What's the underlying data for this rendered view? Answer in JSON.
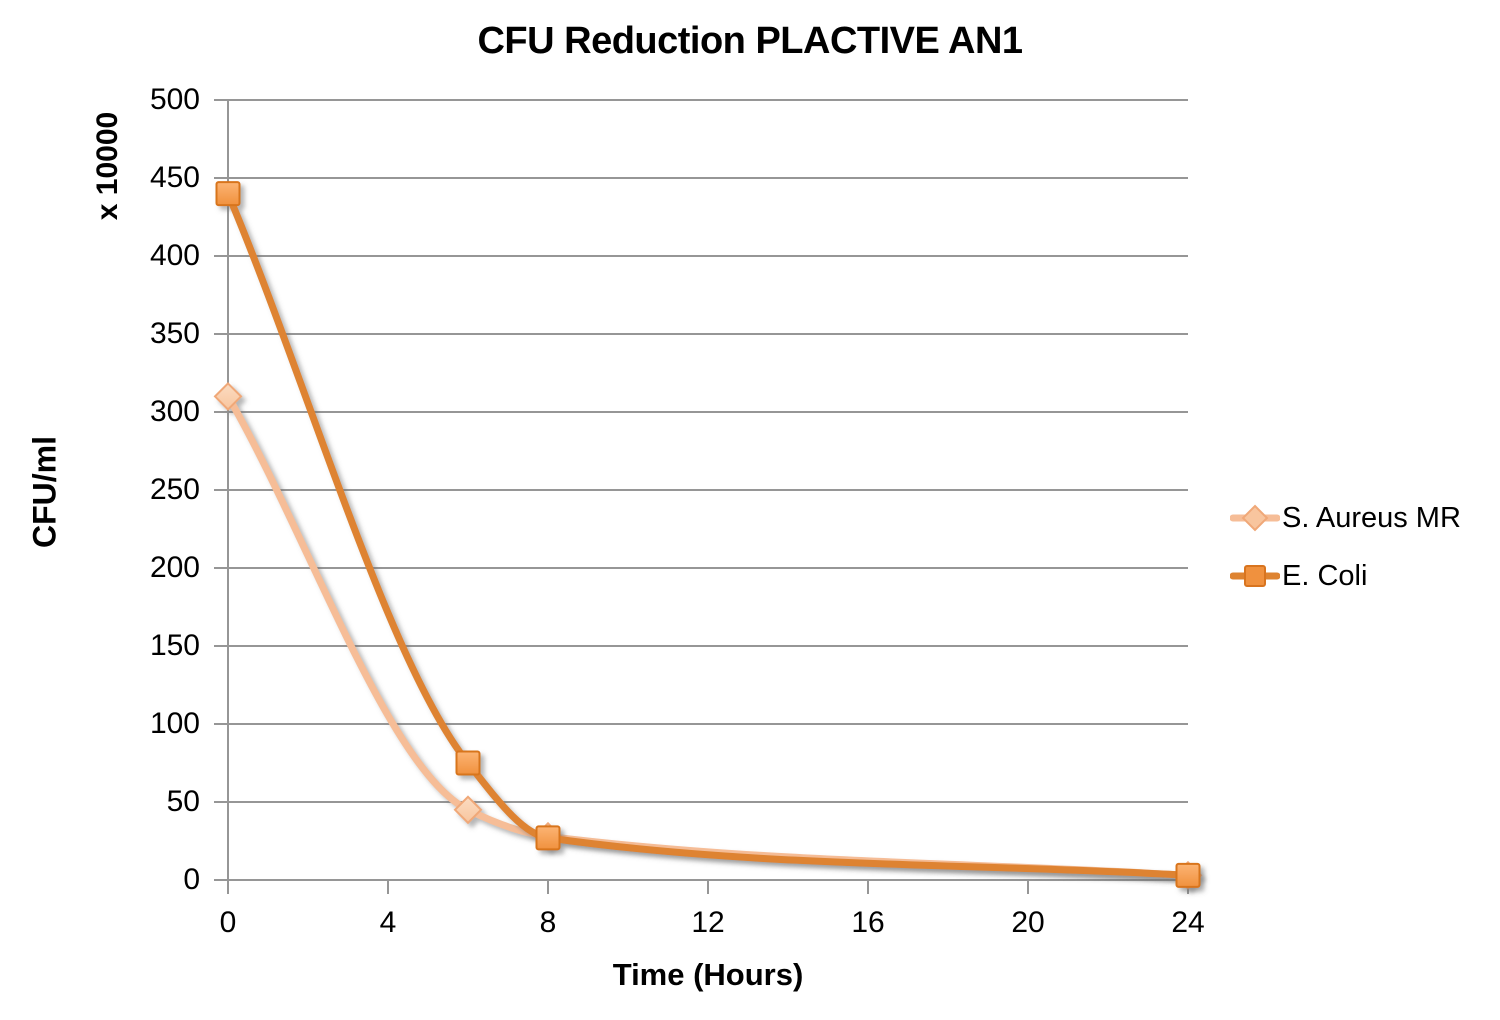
{
  "chart_data": {
    "type": "line",
    "title": "CFU Reduction PLACTIVE AN1",
    "xlabel": "Time (Hours)",
    "ylabel": "CFU/ml",
    "y_unit_label": "x 10000",
    "x": [
      0,
      6,
      8,
      24
    ],
    "series": [
      {
        "name": "S. Aureus MR",
        "values": [
          310,
          45,
          28,
          3
        ],
        "marker": "diamond",
        "line_color": "#F6BD97",
        "marker_fill_light": "#FBDCC2",
        "marker_fill": "#F8C59E",
        "marker_stroke": "#F0A878"
      },
      {
        "name": "E. Coli",
        "values": [
          440,
          75,
          27,
          3
        ],
        "marker": "square",
        "line_color": "#DE8330",
        "marker_fill_light": "#FCB474",
        "marker_fill": "#F0913E",
        "marker_stroke": "#D8741F"
      }
    ],
    "xlim": [
      0,
      24
    ],
    "ylim": [
      0,
      500
    ],
    "xticks": [
      0,
      4,
      8,
      12,
      16,
      20,
      24
    ],
    "yticks": [
      0,
      50,
      100,
      150,
      200,
      250,
      300,
      350,
      400,
      450,
      500
    ],
    "grid": true,
    "legend_position": "right",
    "colors": {
      "gridline": "#969696",
      "axis": "#969696",
      "text": "#000000",
      "background": "#FFFFFF"
    }
  }
}
